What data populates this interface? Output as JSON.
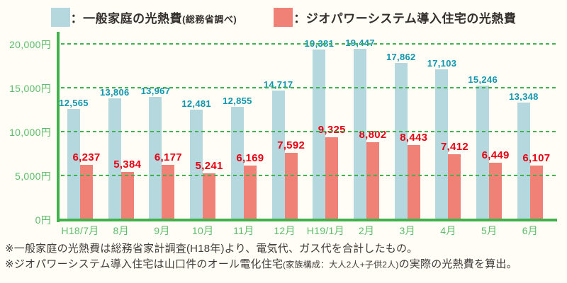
{
  "legend": {
    "general": {
      "label": "：一般家庭の光熱費",
      "label_note": "(総務省調べ)"
    },
    "geo": {
      "label": "：ジオパワーシステム導入住宅の光熱費"
    }
  },
  "chart_data": {
    "type": "bar",
    "categories": [
      "H18/7月",
      "8月",
      "9月",
      "10月",
      "11月",
      "12月",
      "H19/1月",
      "2月",
      "3月",
      "4月",
      "5月",
      "6月"
    ],
    "series": [
      {
        "name": "一般家庭の光熱費(総務省調べ)",
        "color": "#b5d7de",
        "label_color": "#1095ae",
        "values": [
          12565,
          13806,
          13967,
          12481,
          12855,
          14717,
          19381,
          19447,
          17862,
          17103,
          15246,
          13348
        ]
      },
      {
        "name": "ジオパワーシステム導入住宅の光熱費",
        "color": "#ef8177",
        "label_color": "#e60012",
        "values": [
          6237,
          5384,
          6177,
          5241,
          6169,
          7592,
          9325,
          8802,
          8443,
          7412,
          6449,
          6107
        ]
      }
    ],
    "y_ticks": [
      {
        "value": 20000,
        "label": "20,000円"
      },
      {
        "value": 15000,
        "label": "15,000円"
      },
      {
        "value": 10000,
        "label": "10,000円"
      },
      {
        "value": 5000,
        "label": "5,000円"
      },
      {
        "value": 0,
        "label": "0円"
      }
    ],
    "ylim": [
      0,
      20000
    ],
    "grid": "dashed-horizontal",
    "legend_position": "top",
    "axis_color": "#3fb24b",
    "tick_text_color": "#5bbd69"
  },
  "footnotes": {
    "line1": "※一般家庭の光熱費は総務省家計調査(H18年)より、電気代、ガス代を合計したもの。",
    "line2_pre": "※ジオパワーシステム導入住宅は山口件のオール電化住宅",
    "line2_small": "(家族構成：大人2人+子供2人)",
    "line2_post": "の実際の光熱費を算出。"
  }
}
